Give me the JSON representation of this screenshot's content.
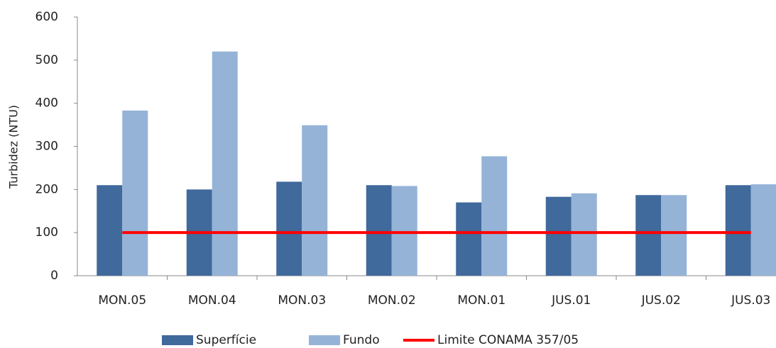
{
  "chart_data": {
    "type": "bar",
    "y_label": "Turbidez (NTU)",
    "categories": [
      "MON.05",
      "MON.04",
      "MON.03",
      "MON.02",
      "MON.01",
      "JUS.01",
      "JUS.02",
      "JUS.03"
    ],
    "series": [
      {
        "name": "Superfície",
        "color": "#40699c",
        "values": [
          210,
          200,
          218,
          210,
          170,
          183,
          187,
          210
        ]
      },
      {
        "name": "Fundo",
        "color": "#95b3d7",
        "values": [
          383,
          520,
          349,
          208,
          277,
          191,
          187,
          212
        ]
      },
      {
        "name": "Limite CONAMA 357/05",
        "color": "#ff0000",
        "type": "line",
        "values": [
          100,
          100,
          100,
          100,
          100,
          100,
          100,
          100
        ]
      }
    ],
    "ylim": [
      0,
      600
    ],
    "yticks": [
      0,
      100,
      200,
      300,
      400,
      500,
      600
    ],
    "grid": false
  }
}
